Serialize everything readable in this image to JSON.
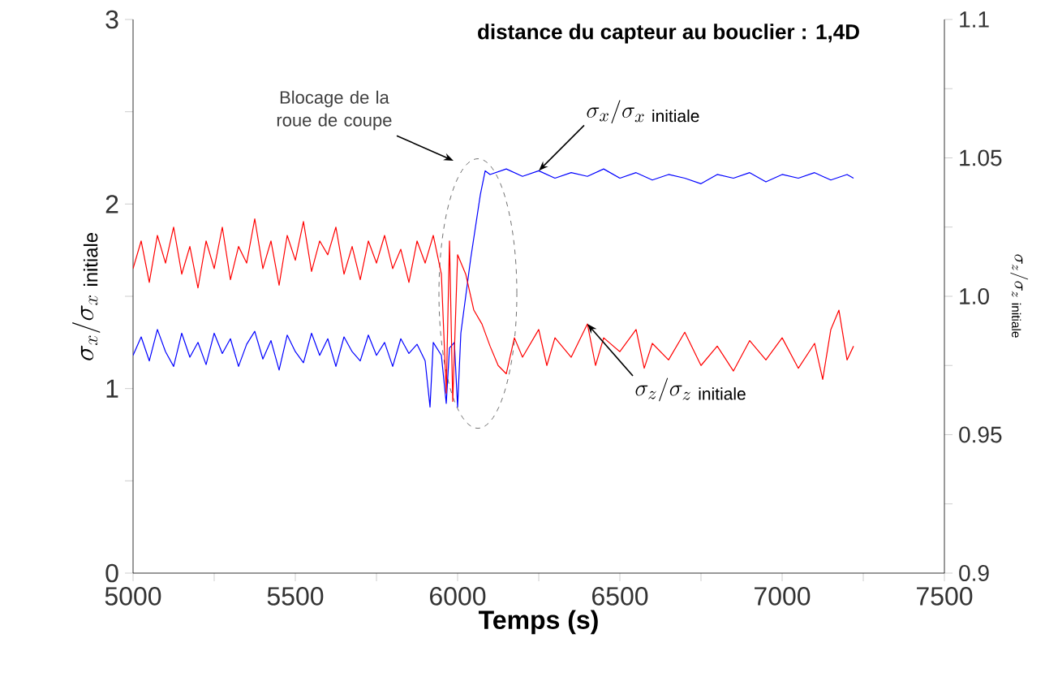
{
  "chart_data": {
    "type": "line",
    "title": "distance du capteur au bouclier : 1,4D",
    "xlabel": "Temps (s)",
    "ylabel": "\\sigma_{x} / \\sigma_{x\\ \\mathrm{initiale}}",
    "y2label": "\\sigma_{z} / \\sigma_{z\\ \\mathrm{initiale}}",
    "annotations": [
      "Blocage de la roue de coupe"
    ],
    "xlim": [
      5000,
      7500
    ],
    "xticks": [
      5000,
      {
        "value": 5250,
        "label": null
      },
      5500,
      {
        "value": 5750,
        "label": null
      },
      6000,
      {
        "value": 6250,
        "label": null
      },
      6500,
      {
        "value": 6750,
        "label": null
      },
      7000,
      {
        "value": 7250,
        "label": null
      },
      7500
    ],
    "ylim": [
      0,
      3
    ],
    "yticks": [
      0,
      {
        "value": 0.5,
        "label": null
      },
      1,
      {
        "value": 1.5,
        "label": null
      },
      2,
      {
        "value": 2.5,
        "label": null
      },
      3
    ],
    "y2lim": [
      0.9,
      1.1
    ],
    "y2ticks": [
      0.9,
      {
        "value": 0.925,
        "label": null
      },
      0.95,
      {
        "value": 0.975,
        "label": null
      },
      {
        "value": 1.0,
        "label": "1.0"
      },
      {
        "value": 1.025,
        "label": null
      },
      1.05,
      {
        "value": 1.075,
        "label": null
      },
      1.1
    ],
    "series": [
      {
        "name": "\\sigma_{x} / \\sigma_{x\\ \\mathrm{initiale}}",
        "color": "#0000ff",
        "x": [
          5000,
          5025,
          5050,
          5075,
          5100,
          5125,
          5150,
          5175,
          5200,
          5225,
          5250,
          5275,
          5300,
          5325,
          5350,
          5375,
          5400,
          5425,
          5450,
          5475,
          5500,
          5525,
          5550,
          5575,
          5600,
          5625,
          5650,
          5675,
          5700,
          5725,
          5750,
          5775,
          5800,
          5825,
          5850,
          5875,
          5900,
          5915,
          5925,
          5950,
          5965,
          5975,
          5990,
          6000,
          6010,
          6040,
          6070,
          6085,
          6100,
          6150,
          6200,
          6250,
          6300,
          6350,
          6400,
          6450,
          6500,
          6550,
          6600,
          6650,
          6700,
          6750,
          6800,
          6850,
          6900,
          6950,
          7000,
          7050,
          7100,
          7150,
          7200,
          7220
        ],
        "values": [
          1.18,
          1.28,
          1.15,
          1.32,
          1.2,
          1.12,
          1.3,
          1.17,
          1.25,
          1.13,
          1.3,
          1.19,
          1.27,
          1.12,
          1.24,
          1.31,
          1.16,
          1.26,
          1.1,
          1.29,
          1.2,
          1.14,
          1.3,
          1.18,
          1.27,
          1.12,
          1.28,
          1.2,
          1.15,
          1.29,
          1.18,
          1.25,
          1.12,
          1.27,
          1.19,
          1.24,
          1.15,
          0.9,
          1.25,
          1.18,
          0.92,
          1.22,
          1.25,
          0.9,
          1.3,
          1.7,
          2.05,
          2.18,
          2.16,
          2.19,
          2.15,
          2.18,
          2.14,
          2.17,
          2.15,
          2.19,
          2.14,
          2.17,
          2.13,
          2.16,
          2.14,
          2.11,
          2.16,
          2.14,
          2.17,
          2.12,
          2.16,
          2.14,
          2.17,
          2.13,
          2.16,
          2.14
        ]
      },
      {
        "name": "\\sigma_{z} / \\sigma_{z\\ \\mathrm{initiale}}",
        "color": "#ff0000",
        "axis": "y2",
        "x": [
          5000,
          5025,
          5050,
          5075,
          5100,
          5125,
          5150,
          5175,
          5200,
          5225,
          5250,
          5275,
          5300,
          5325,
          5350,
          5375,
          5400,
          5425,
          5450,
          5475,
          5500,
          5525,
          5550,
          5575,
          5600,
          5625,
          5650,
          5675,
          5700,
          5725,
          5750,
          5775,
          5800,
          5825,
          5850,
          5875,
          5900,
          5925,
          5950,
          5965,
          5975,
          5985,
          6000,
          6025,
          6050,
          6075,
          6100,
          6125,
          6150,
          6175,
          6200,
          6250,
          6275,
          6300,
          6350,
          6400,
          6425,
          6450,
          6500,
          6550,
          6575,
          6600,
          6650,
          6700,
          6750,
          6800,
          6850,
          6900,
          6950,
          7000,
          7050,
          7100,
          7125,
          7150,
          7175,
          7200,
          7220
        ],
        "values": [
          1.01,
          1.02,
          1.005,
          1.022,
          1.012,
          1.025,
          1.008,
          1.018,
          1.003,
          1.02,
          1.01,
          1.025,
          1.006,
          1.018,
          1.012,
          1.028,
          1.01,
          1.02,
          1.004,
          1.022,
          1.013,
          1.027,
          1.009,
          1.02,
          1.015,
          1.025,
          1.008,
          1.018,
          1.006,
          1.02,
          1.012,
          1.022,
          1.01,
          1.017,
          1.005,
          1.02,
          1.012,
          1.022,
          1.008,
          0.965,
          1.02,
          0.962,
          1.015,
          1.008,
          0.995,
          0.99,
          0.982,
          0.975,
          0.972,
          0.985,
          0.978,
          0.988,
          0.975,
          0.985,
          0.978,
          0.99,
          0.975,
          0.985,
          0.98,
          0.988,
          0.974,
          0.983,
          0.977,
          0.987,
          0.975,
          0.982,
          0.973,
          0.984,
          0.977,
          0.985,
          0.974,
          0.983,
          0.97,
          0.988,
          0.995,
          0.977,
          0.982
        ]
      }
    ]
  }
}
